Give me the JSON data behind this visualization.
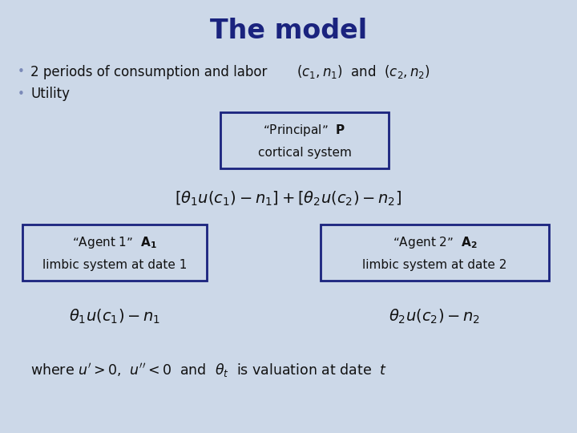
{
  "background_color": "#ccd8e8",
  "title": "The model",
  "title_color": "#1a237e",
  "title_fontsize": 24,
  "bullet1_text": "2 periods of consumption and labor ",
  "bullet1_math": "$(c_1, n_1)$  and  $(c_2, n_2)$",
  "bullet2": "Utility",
  "box_border_color": "#1a237e",
  "box_fill_color": "#ccd8e8",
  "principal_line1": "“Principal”  \\textbf{P}",
  "principal_line2": "cortical system",
  "utility_formula": "$[\\theta_1 u(c_1) - n_1] + [\\theta_2 u(c_2) - n_2]$",
  "agent1_line1": "“Agent 1”  \\textbf{A}$_1$",
  "agent1_line2": "limbic system at date 1",
  "agent2_line1": "“Agent 2”  \\textbf{A}$_2$",
  "agent2_line2": "limbic system at date 2",
  "formula_left": "$\\theta_1 u(c_1) - n_1$",
  "formula_right": "$\\theta_2 u(c_2) - n_2$",
  "bottom_text": "where $u' > 0$,  $u'' < 0$  and  $\\theta_t$  is valuation at date  $t$",
  "bullet_color": "#7b8ab8",
  "text_color": "#111111",
  "formula_color": "#111111"
}
